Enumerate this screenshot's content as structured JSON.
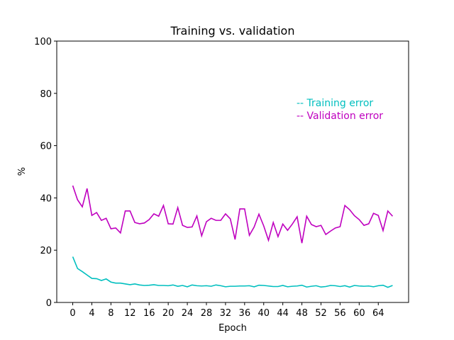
{
  "chart_data": {
    "type": "line",
    "title": "Training vs. validation",
    "x_label": "Epoch",
    "y_label": "%",
    "x": [
      0,
      1,
      2,
      3,
      4,
      5,
      6,
      7,
      8,
      9,
      10,
      11,
      12,
      13,
      14,
      15,
      16,
      17,
      18,
      19,
      20,
      21,
      22,
      23,
      24,
      25,
      26,
      27,
      28,
      29,
      30,
      31,
      32,
      33,
      34,
      35,
      36,
      37,
      38,
      39,
      40,
      41,
      42,
      43,
      44,
      45,
      46,
      47,
      48,
      49,
      50,
      51,
      52,
      53,
      54,
      55,
      56,
      57,
      58,
      59,
      60,
      61,
      62,
      63,
      64,
      65,
      66,
      67
    ],
    "series": [
      {
        "name": "-- Training error",
        "color": "#00bfbf",
        "values": [
          17.5,
          13,
          11.8,
          10.5,
          9.2,
          9.1,
          8.4,
          9.0,
          7.8,
          7.4,
          7.4,
          7.1,
          6.8,
          7.1,
          6.7,
          6.5,
          6.6,
          6.8,
          6.5,
          6.5,
          6.4,
          6.7,
          6.2,
          6.5,
          6.0,
          6.7,
          6.4,
          6.3,
          6.4,
          6.2,
          6.7,
          6.4,
          6.0,
          6.2,
          6.2,
          6.3,
          6.3,
          6.4,
          6.0,
          6.6,
          6.5,
          6.3,
          6.1,
          6.1,
          6.5,
          6.0,
          6.2,
          6.3,
          6.6,
          5.9,
          6.2,
          6.4,
          5.9,
          6.1,
          6.5,
          6.4,
          6.1,
          6.4,
          5.9,
          6.5,
          6.3,
          6.2,
          6.3,
          6.0,
          6.4,
          6.6,
          5.8,
          6.5
        ]
      },
      {
        "name": "-- Validation error",
        "color": "#bf00bf",
        "values": [
          44.7,
          39.3,
          36.6,
          43.6,
          33.3,
          34.4,
          31.4,
          32.2,
          28.2,
          28.5,
          26.6,
          35,
          35,
          30.6,
          30.1,
          30.4,
          31.7,
          33.9,
          33,
          37.1,
          30.1,
          30,
          36.3,
          29.5,
          28.7,
          28.9,
          33.1,
          25.5,
          30.9,
          32.2,
          31.4,
          31.4,
          33.9,
          32,
          24.1,
          35.8,
          35.8,
          25.7,
          28.9,
          33.8,
          29.3,
          23.8,
          30.6,
          25.2,
          30,
          27.6,
          30,
          32.8,
          22.7,
          33,
          29.8,
          29,
          29.5,
          26,
          27.3,
          28.5,
          29,
          37.1,
          35.5,
          33.2,
          31.7,
          29.5,
          30.1,
          34.1,
          33.3,
          27.5,
          35,
          33
        ]
      }
    ],
    "xlim": [
      -3.35,
      70.35
    ],
    "ylim": [
      0,
      100
    ],
    "xticks": [
      0,
      4,
      8,
      12,
      16,
      20,
      24,
      28,
      32,
      36,
      40,
      44,
      48,
      52,
      56,
      60,
      64
    ],
    "yticks": [
      0,
      20,
      40,
      60,
      80,
      100
    ],
    "legend": "upper right"
  }
}
